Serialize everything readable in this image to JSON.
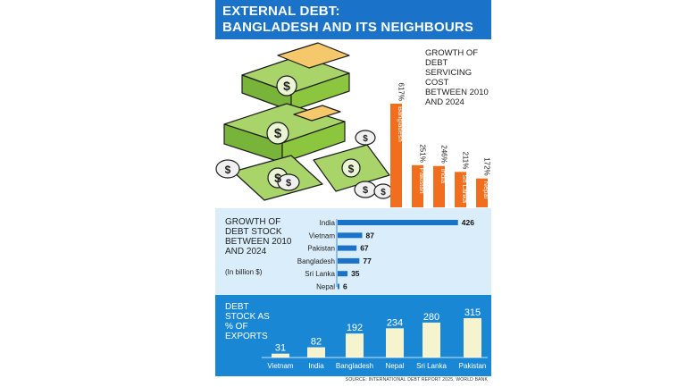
{
  "header": {
    "title_line1": "EXTERNAL DEBT:",
    "title_line2": "BANGLADESH AND ITS NEIGHBOURS"
  },
  "colors": {
    "title_bg": "#1a73c9",
    "orange": "#f06e1e",
    "mid_bg": "#d9eefa",
    "mid_bar": "#1a73c9",
    "bottom_bg": "#1a87d4",
    "bottom_bar": "#f6f3cf",
    "money_green": "#8cc63f"
  },
  "illustration": {
    "icon": "money-stacks-and-dollar-coins-icon"
  },
  "source": "SOURCE: INTERNATIONAL DEBT REPORT 2025, WORLD BANK",
  "chart_data": [
    {
      "type": "bar",
      "title": "GROWTH OF DEBT SERVICING COST BETWEEN 2010 AND 2024",
      "orientation": "vertical",
      "categories": [
        "Bangladesh",
        "Pakistan",
        "India",
        "Sri Lanka",
        "Nepal"
      ],
      "values": [
        617,
        251,
        246,
        211,
        172
      ],
      "value_labels": [
        "617%",
        "251%",
        "246%",
        "211%",
        "172%"
      ],
      "unit": "%",
      "color": "#f06e1e",
      "ylim": [
        0,
        700
      ],
      "grid": false
    },
    {
      "type": "bar",
      "title": "GROWTH OF DEBT STOCK BETWEEN 2010 AND 2024",
      "subtitle": "(In billion $)",
      "orientation": "horizontal",
      "categories": [
        "India",
        "Vietnam",
        "Pakistan",
        "Bangladesh",
        "Sri Lanka",
        "Nepal"
      ],
      "values": [
        426,
        87,
        67,
        77,
        35,
        6
      ],
      "color": "#1a73c9",
      "xlim": [
        0,
        430
      ],
      "grid": false
    },
    {
      "type": "bar",
      "title": "DEBT STOCK AS % OF EXPORTS",
      "orientation": "vertical",
      "categories": [
        "Vietnam",
        "India",
        "Bangladesh",
        "Nepal",
        "Sri Lanka",
        "Pakistan"
      ],
      "values": [
        31,
        82,
        192,
        234,
        280,
        315
      ],
      "color": "#f6f3cf",
      "ylim": [
        0,
        330
      ],
      "grid": false
    }
  ]
}
